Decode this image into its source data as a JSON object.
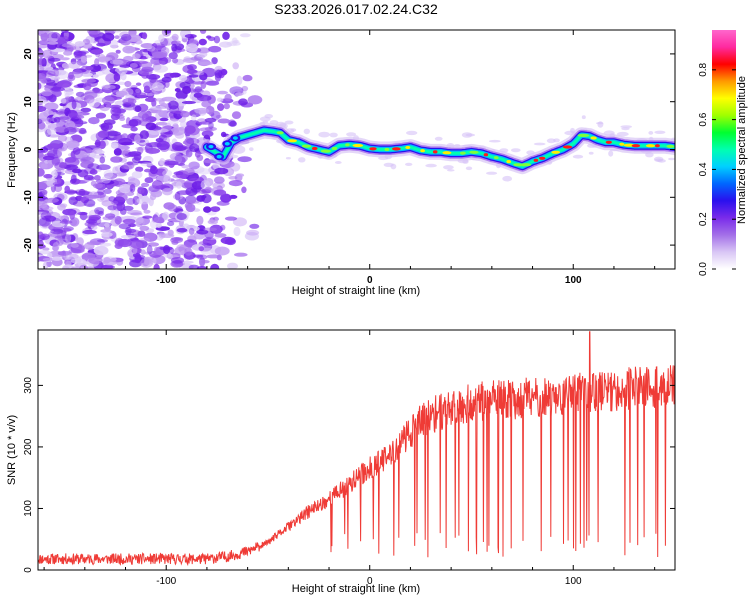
{
  "title": "S233.2026.017.02.24.C32",
  "chart_data": [
    {
      "type": "heatmap",
      "name": "spectrogram",
      "title": "S233.2026.017.02.24.C32",
      "xlabel": "Height of straight line (km)",
      "ylabel": "Frequency (Hz)",
      "xlim": [
        -163,
        150
      ],
      "ylim": [
        -25,
        25
      ],
      "x_ticks": [
        -100,
        0,
        100
      ],
      "x_tick_labels": [
        "-100",
        "0",
        "100"
      ],
      "y_ticks": [
        -20,
        -10,
        0,
        10,
        20
      ],
      "y_tick_labels": [
        "-20",
        "-10",
        "0",
        "10",
        "20"
      ],
      "ridge_x": [
        -80,
        -76,
        -72,
        -68,
        -64,
        -60,
        -56,
        -52,
        -48,
        -44,
        -40,
        -35,
        -30,
        -25,
        -20,
        -15,
        -10,
        -5,
        0,
        5,
        10,
        15,
        20,
        25,
        30,
        35,
        40,
        45,
        50,
        55,
        60,
        65,
        70,
        75,
        80,
        85,
        90,
        95,
        100,
        104,
        108,
        112,
        116,
        120,
        125,
        130,
        135,
        140,
        145,
        150
      ],
      "ridge_freq_hz": [
        0.5,
        -0.5,
        -1.5,
        1.5,
        2.5,
        3.0,
        3.5,
        4.0,
        3.8,
        3.5,
        2.0,
        1.5,
        0.5,
        0.0,
        -0.5,
        0.8,
        1.0,
        0.8,
        0.2,
        0.0,
        0.0,
        0.2,
        0.5,
        -0.2,
        -0.5,
        -0.5,
        -0.8,
        -0.8,
        -0.5,
        -0.8,
        -1.5,
        -2.0,
        -2.8,
        -3.5,
        -2.5,
        -1.8,
        -0.8,
        0.0,
        1.2,
        3.0,
        2.8,
        2.0,
        1.5,
        1.5,
        1.0,
        0.8,
        0.8,
        0.8,
        0.8,
        0.5
      ],
      "noise_region_x": [
        -163,
        -55
      ],
      "noise_seed": 7
    },
    {
      "type": "line",
      "name": "snr",
      "xlabel": "Height of straight line (km)",
      "ylabel": "SNR (10 * v/v)",
      "xlim": [
        -163,
        150
      ],
      "ylim": [
        0,
        390
      ],
      "x_ticks": [
        -100,
        0,
        100
      ],
      "x_tick_labels": [
        "-100",
        "0",
        "100"
      ],
      "y_ticks": [
        0,
        100,
        200,
        300
      ],
      "y_tick_labels": [
        "0",
        "100",
        "200",
        "300"
      ],
      "color": "#ef3b36",
      "envelope_x": [
        -163,
        -120,
        -80,
        -70,
        -60,
        -50,
        -40,
        -30,
        -20,
        -10,
        0,
        10,
        15,
        20,
        25,
        30,
        40,
        50,
        60,
        70,
        80,
        90,
        100,
        110,
        120,
        130,
        140,
        150
      ],
      "envelope_snr": [
        18,
        18,
        18,
        22,
        30,
        45,
        70,
        95,
        115,
        140,
        165,
        185,
        205,
        225,
        240,
        250,
        265,
        272,
        275,
        278,
        280,
        282,
        285,
        290,
        292,
        295,
        297,
        300
      ],
      "spike_peak": {
        "x": 108,
        "snr": 387
      },
      "noise_seed": 11
    }
  ],
  "colorbar": {
    "label": "Normalized spectral amplitude",
    "ticks": [
      0.0,
      0.2,
      0.4,
      0.6,
      0.8
    ],
    "tick_labels": [
      "0.0",
      "0.2",
      "0.4",
      "0.6",
      "0.8"
    ],
    "range": [
      0,
      0.96
    ],
    "stops": [
      "#ffffff",
      "#d9c6f5",
      "#a36fe8",
      "#7a2bea",
      "#2a10ee",
      "#0066ff",
      "#00d0ff",
      "#00ffb0",
      "#00ff30",
      "#a0ff00",
      "#ffff00",
      "#ff9900",
      "#ff0000",
      "#ff2aa0",
      "#ff66cc"
    ]
  }
}
